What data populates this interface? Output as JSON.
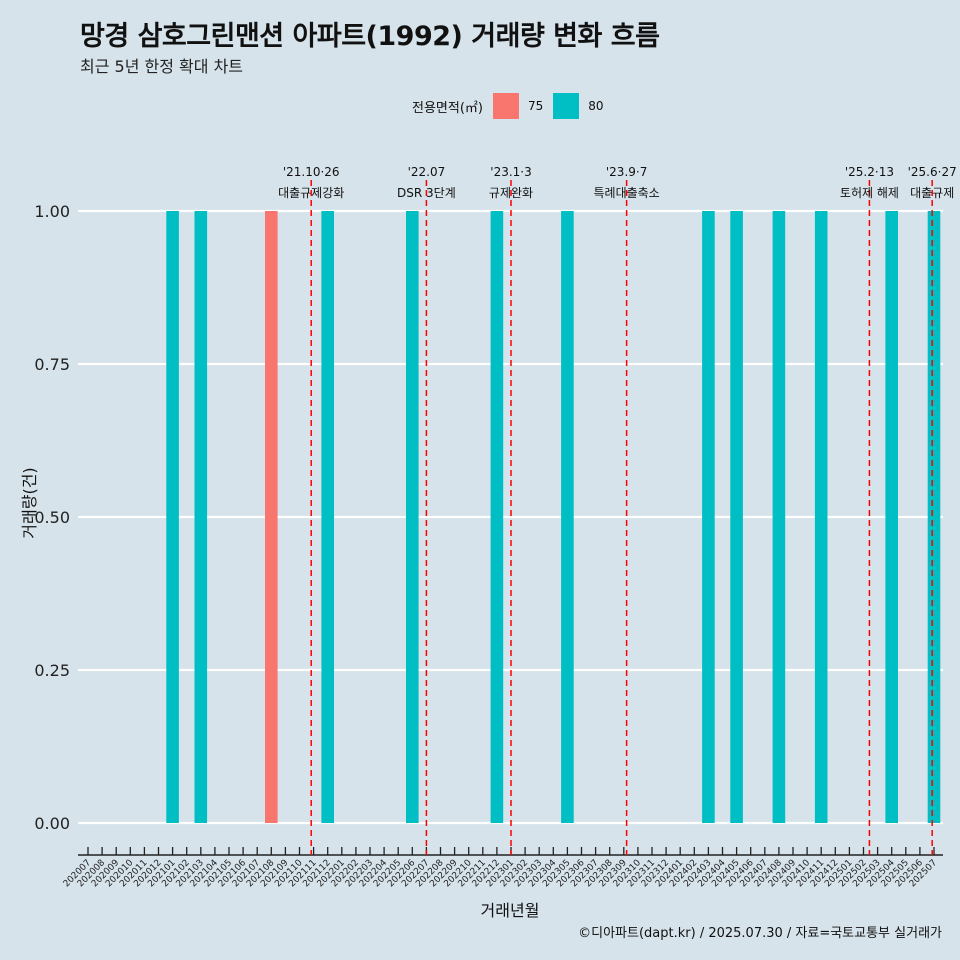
{
  "title": "망경 삼호그린맨션 아파트(1992) 거래량 변화 흐름",
  "subtitle": "최근 5년 한정 확대 차트",
  "legend": {
    "title": "전용면적(㎡)",
    "items": [
      {
        "label": "75",
        "color": "#f8766d"
      },
      {
        "label": "80",
        "color": "#00bfc4"
      }
    ]
  },
  "caption": "©디아파트(dapt.kr) / 2025.07.30 / 자료=국토교통부 실거래가",
  "colors": {
    "background": "#d6e3ea",
    "grid": "#ffffff",
    "event_line": "#ff0000"
  },
  "chart_data": {
    "type": "bar",
    "xlabel": "거래년월",
    "ylabel": "거래량(건)",
    "ylim": [
      0,
      1
    ],
    "y_ticks": [
      "0.00",
      "0.25",
      "0.50",
      "0.75",
      "1.00"
    ],
    "grid": true,
    "legend_position": "top",
    "categories": [
      "202007",
      "202008",
      "202009",
      "202010",
      "202011",
      "202012",
      "202101",
      "202102",
      "202103",
      "202104",
      "202105",
      "202106",
      "202107",
      "202108",
      "202109",
      "202110",
      "202111",
      "202112",
      "202201",
      "202202",
      "202203",
      "202204",
      "202205",
      "202206",
      "202207",
      "202208",
      "202209",
      "202210",
      "202211",
      "202212",
      "202301",
      "202302",
      "202303",
      "202304",
      "202305",
      "202306",
      "202307",
      "202308",
      "202309",
      "202310",
      "202311",
      "202312",
      "202401",
      "202402",
      "202403",
      "202404",
      "202405",
      "202406",
      "202407",
      "202408",
      "202409",
      "202410",
      "202411",
      "202412",
      "202501",
      "202502",
      "202503",
      "202504",
      "202505",
      "202506",
      "202507"
    ],
    "series": [
      {
        "name": "75",
        "color": "#f8766d",
        "points": [
          {
            "x": "202108",
            "y": 1
          }
        ]
      },
      {
        "name": "80",
        "color": "#00bfc4",
        "points": [
          {
            "x": "202101",
            "y": 1
          },
          {
            "x": "202103",
            "y": 1
          },
          {
            "x": "202112",
            "y": 1
          },
          {
            "x": "202206",
            "y": 1
          },
          {
            "x": "202212",
            "y": 1
          },
          {
            "x": "202305",
            "y": 1
          },
          {
            "x": "202403",
            "y": 1
          },
          {
            "x": "202405",
            "y": 1
          },
          {
            "x": "202408",
            "y": 1
          },
          {
            "x": "202411",
            "y": 1
          },
          {
            "x": "202504",
            "y": 1
          },
          {
            "x": "202507",
            "y": 1
          }
        ]
      }
    ],
    "annotations": [
      {
        "date_label": "'21.10·26",
        "text": "대출규제강화",
        "x": "202110",
        "offset": 0.83
      },
      {
        "date_label": "'22.07",
        "text": "DSR 3단계",
        "x": "202207",
        "offset": 0.0
      },
      {
        "date_label": "'23.1·3",
        "text": "규제완화",
        "x": "202301",
        "offset": 0.0
      },
      {
        "date_label": "'23.9·7",
        "text": "특례대출축소",
        "x": "202309",
        "offset": 0.2
      },
      {
        "date_label": "'25.2·13",
        "text": "토허제 해제",
        "x": "202502",
        "offset": 0.42
      },
      {
        "date_label": "'25.6·27",
        "text": "대출규제",
        "x": "202506",
        "offset": 0.87
      }
    ]
  }
}
